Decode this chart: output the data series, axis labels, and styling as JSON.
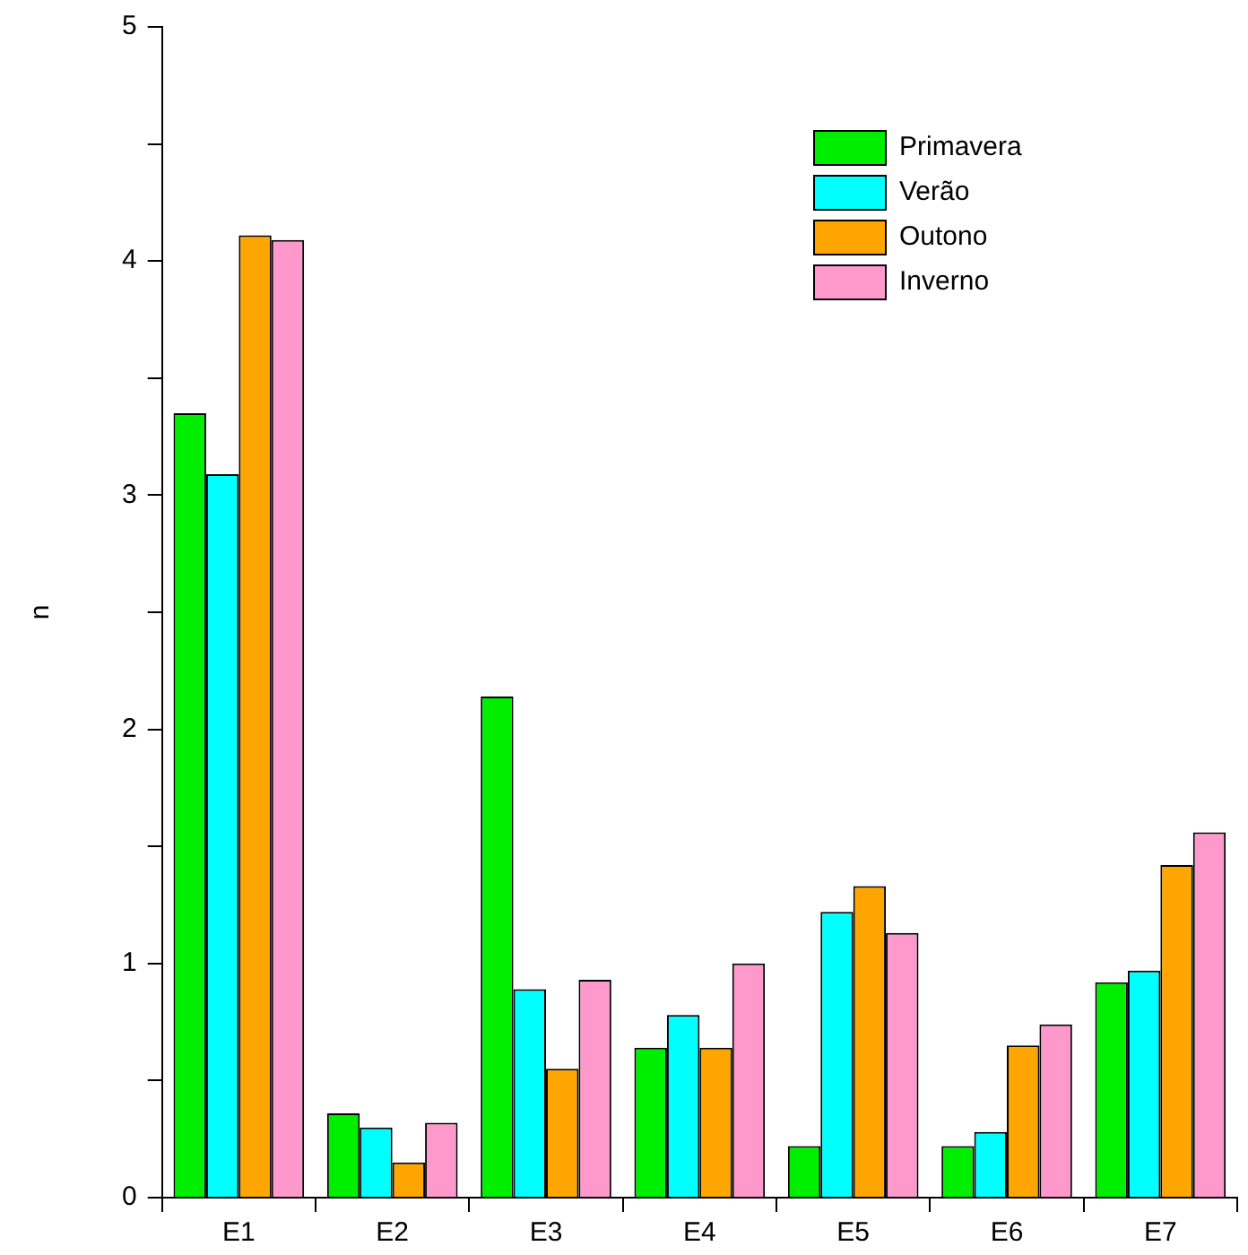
{
  "chart_data": {
    "type": "bar",
    "ylabel": "n",
    "categories": [
      "E1",
      "E2",
      "E3",
      "E4",
      "E5",
      "E6",
      "E7"
    ],
    "series": [
      {
        "name": "Primavera",
        "color": "#00ee00",
        "values": [
          3.35,
          0.36,
          2.14,
          0.64,
          0.22,
          0.22,
          0.92
        ]
      },
      {
        "name": "Verão",
        "color": "#00ffff",
        "values": [
          3.09,
          0.3,
          0.89,
          0.78,
          1.22,
          0.28,
          0.97
        ]
      },
      {
        "name": "Outono",
        "color": "#ffa500",
        "values": [
          4.11,
          0.15,
          0.55,
          0.64,
          1.33,
          0.65,
          1.42
        ]
      },
      {
        "name": "Inverno",
        "color": "#ff99cc",
        "values": [
          4.09,
          0.32,
          0.93,
          1.0,
          1.13,
          0.74,
          1.56
        ]
      }
    ],
    "ylim": [
      0,
      5
    ],
    "yticks": [
      0,
      {
        "value": 0.5,
        "label": null
      },
      1,
      {
        "value": 1.5,
        "label": null
      },
      2,
      {
        "value": 2.5,
        "label": null
      },
      3,
      {
        "value": 3.5,
        "label": null
      },
      4,
      {
        "value": 4.5,
        "label": null
      },
      5
    ],
    "grid": false,
    "legend": "top right"
  }
}
